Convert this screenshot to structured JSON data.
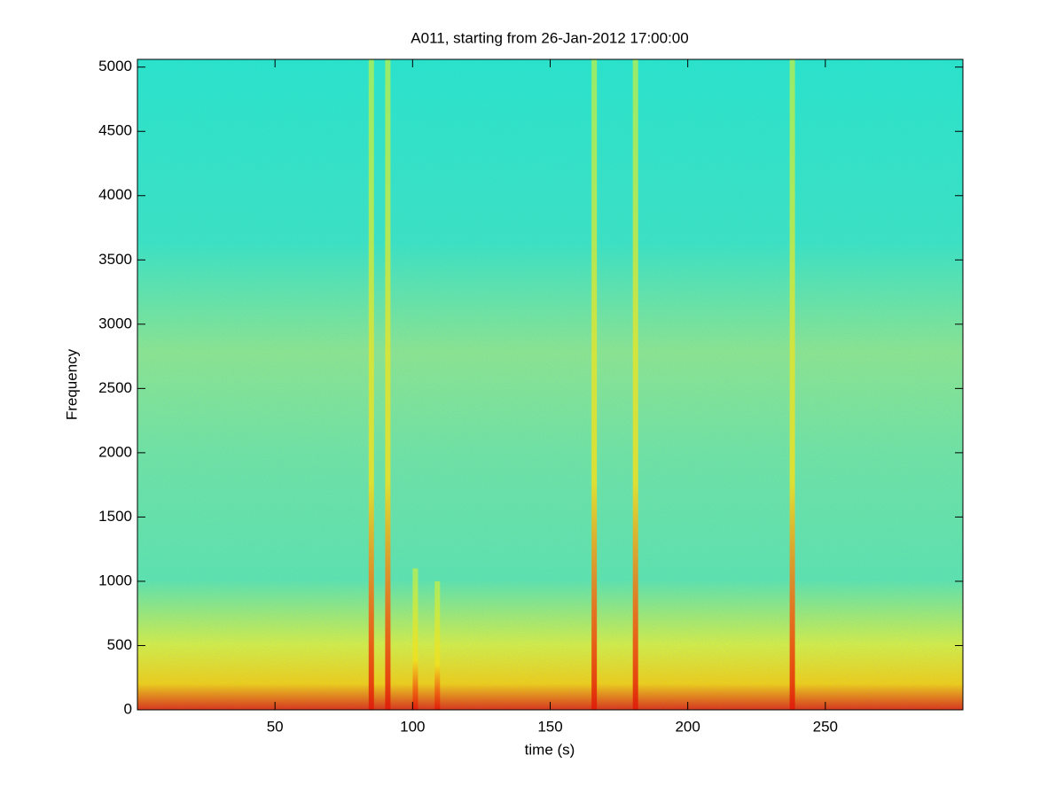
{
  "chart_data": {
    "type": "spectrogram",
    "title": "A011, starting from 26-Jan-2012 17:00:00",
    "x_label": "time (s)",
    "y_label": "Frequency",
    "xlim": [
      0,
      300
    ],
    "ylim": [
      0,
      5060
    ],
    "xticks": [
      50,
      100,
      150,
      200,
      250
    ],
    "yticks": [
      0,
      500,
      1000,
      1500,
      2000,
      2500,
      3000,
      3500,
      4000,
      4500,
      5000
    ],
    "x": [
      85,
      91,
      101,
      109,
      166,
      181,
      238
    ],
    "values": [
      5060,
      5060,
      1100,
      1000,
      5060,
      5060,
      5060
    ]
  }
}
